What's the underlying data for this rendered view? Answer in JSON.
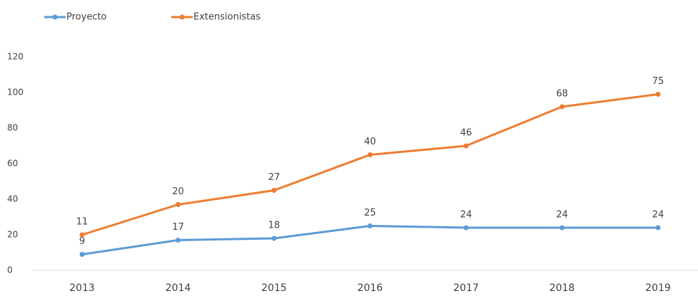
{
  "chart_data": {
    "type": "line",
    "stacked": true,
    "categories": [
      "2013",
      "2014",
      "2015",
      "2016",
      "2017",
      "2018",
      "2019"
    ],
    "series": [
      {
        "name": "Proyecto",
        "color": "#5b9bd5",
        "values": [
          9,
          17,
          18,
          25,
          24,
          24,
          24
        ]
      },
      {
        "name": "Extensionistas",
        "color": "#ed7d31",
        "values": [
          11,
          20,
          27,
          40,
          46,
          68,
          75
        ]
      }
    ],
    "ylim": [
      0,
      120
    ],
    "yticks": [
      0,
      20,
      40,
      60,
      80,
      100,
      120
    ],
    "grid": false,
    "legend": "top-left"
  }
}
